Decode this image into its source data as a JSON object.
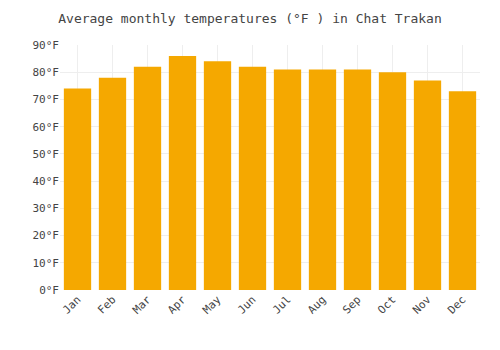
{
  "chart_data": {
    "type": "bar",
    "title": "Average monthly temperatures (°F ) in Chat Trakan",
    "categories": [
      "Jan",
      "Feb",
      "Mar",
      "Apr",
      "May",
      "Jun",
      "Jul",
      "Aug",
      "Sep",
      "Oct",
      "Nov",
      "Dec"
    ],
    "values": [
      74,
      78,
      82,
      86,
      84,
      82,
      81,
      81,
      81,
      80,
      77,
      73
    ],
    "color": "#F5A800",
    "ylim": [
      0,
      90
    ],
    "yticks": [
      {
        "value": 0,
        "label": "0°F"
      },
      {
        "value": 10,
        "label": "10°F"
      },
      {
        "value": 20,
        "label": "20°F"
      },
      {
        "value": 30,
        "label": "30°F"
      },
      {
        "value": 40,
        "label": "40°F"
      },
      {
        "value": 50,
        "label": "50°F"
      },
      {
        "value": 60,
        "label": "60°F"
      },
      {
        "value": 70,
        "label": "70°F"
      },
      {
        "value": 80,
        "label": "80°F"
      },
      {
        "value": 90,
        "label": "90°F"
      }
    ],
    "grid": true
  }
}
